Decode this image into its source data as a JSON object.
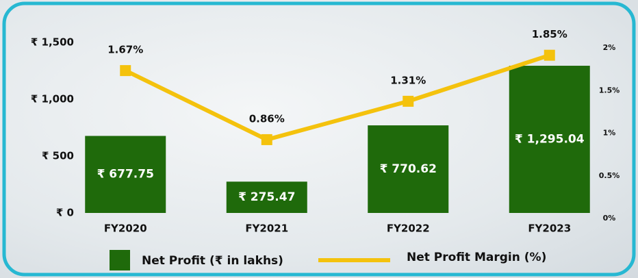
{
  "chart_data": {
    "type": "bar",
    "categories": [
      "FY2020",
      "FY2021",
      "FY2022",
      "FY2023"
    ],
    "series": [
      {
        "name": "Net Profit (₹ in lakhs)",
        "type": "bar",
        "color": "#1f6a0b",
        "values": [
          677.75,
          275.47,
          770.62,
          1295.04
        ],
        "value_labels": [
          "₹ 677.75",
          "₹ 275.47",
          "₹ 770.62",
          "₹ 1,295.04"
        ]
      },
      {
        "name": "Net Profit Margin (%)",
        "type": "line",
        "axis": "y2",
        "color": "#f4c20d",
        "values": [
          1.67,
          0.86,
          1.31,
          1.85
        ],
        "value_labels": [
          "1.67%",
          "0.86%",
          "1.31%",
          "1.85%"
        ]
      }
    ],
    "ylim": [
      0,
      1500
    ],
    "yticks": [
      {
        "value": 0,
        "label": "₹ 0"
      },
      {
        "value": 500,
        "label": "₹ 500"
      },
      {
        "value": 1000,
        "label": "₹ 1,000"
      },
      {
        "value": 1500,
        "label": "₹ 1,500"
      }
    ],
    "y2lim": [
      0,
      2
    ],
    "y2ticks": [
      {
        "value": 0,
        "label": "0%"
      },
      {
        "value": 0.5,
        "label": "0.5%"
      },
      {
        "value": 1,
        "label": "1%"
      },
      {
        "value": 1.5,
        "label": "1.5%"
      },
      {
        "value": 2,
        "label": "2%"
      }
    ],
    "legend": "bottom"
  }
}
